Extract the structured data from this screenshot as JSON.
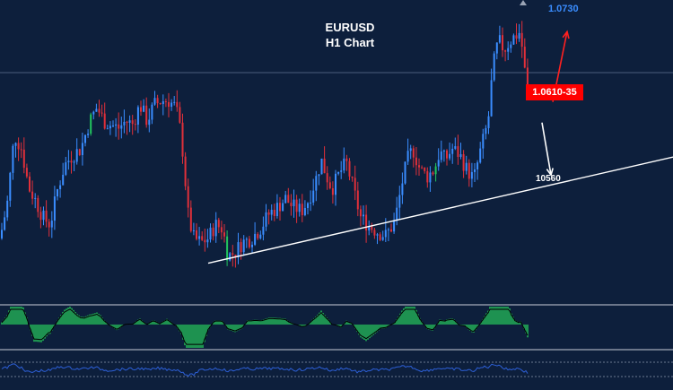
{
  "chart_data": {
    "type": "candlestick",
    "symbol": "EURUSD",
    "timeframe": "H1 Chart",
    "current_price_label": "1.0610-35",
    "target_up_label": "1.0730",
    "target_down_label": "10560",
    "colors": {
      "background": "#0d1f3c",
      "bull": "#3a8dff",
      "bear": "#e0303a",
      "doji": "#22c55e",
      "trendline": "#ffffff",
      "arrow_up": "#ff2020",
      "arrow_down": "#ffffff",
      "badge": "#ff0000",
      "osc_positive": "#27c45a",
      "osc_line": "#000000",
      "rsi_line": "#2d5fd6",
      "separator": "#c9ced8"
    },
    "price_path": [
      [
        0,
        1.0575
      ],
      [
        8,
        1.06
      ],
      [
        16,
        1.065
      ],
      [
        24,
        1.064
      ],
      [
        32,
        1.0612
      ],
      [
        40,
        1.0602
      ],
      [
        48,
        1.059
      ],
      [
        56,
        1.0585
      ],
      [
        64,
        1.061
      ],
      [
        72,
        1.0628
      ],
      [
        80,
        1.0635
      ],
      [
        90,
        1.064
      ],
      [
        100,
        1.066
      ],
      [
        108,
        1.067
      ],
      [
        116,
        1.066
      ],
      [
        124,
        1.0657
      ],
      [
        132,
        1.0655
      ],
      [
        140,
        1.066
      ],
      [
        148,
        1.0658
      ],
      [
        156,
        1.0672
      ],
      [
        164,
        1.066
      ],
      [
        172,
        1.0672
      ],
      [
        180,
        1.0675
      ],
      [
        188,
        1.0675
      ],
      [
        196,
        1.067
      ],
      [
        202,
        1.065
      ],
      [
        206,
        1.062
      ],
      [
        210,
        1.059
      ],
      [
        216,
        1.0575
      ],
      [
        224,
        1.0572
      ],
      [
        232,
        1.0575
      ],
      [
        240,
        1.0585
      ],
      [
        248,
        1.0582
      ],
      [
        254,
        1.0562
      ],
      [
        262,
        1.0565
      ],
      [
        270,
        1.0572
      ],
      [
        280,
        1.0575
      ],
      [
        290,
        1.0582
      ],
      [
        300,
        1.0593
      ],
      [
        310,
        1.0598
      ],
      [
        318,
        1.0604
      ],
      [
        326,
        1.0598
      ],
      [
        336,
        1.0595
      ],
      [
        344,
        1.0603
      ],
      [
        352,
        1.0618
      ],
      [
        358,
        1.0632
      ],
      [
        364,
        1.062
      ],
      [
        370,
        1.0611
      ],
      [
        378,
        1.0622
      ],
      [
        386,
        1.063
      ],
      [
        394,
        1.061
      ],
      [
        402,
        1.059
      ],
      [
        410,
        1.0585
      ],
      [
        420,
        1.058
      ],
      [
        430,
        1.0577
      ],
      [
        440,
        1.0587
      ],
      [
        448,
        1.0615
      ],
      [
        454,
        1.0632
      ],
      [
        460,
        1.064
      ],
      [
        468,
        1.0625
      ],
      [
        476,
        1.062
      ],
      [
        484,
        1.0625
      ],
      [
        490,
        1.0638
      ],
      [
        496,
        1.0632
      ],
      [
        504,
        1.064
      ],
      [
        512,
        1.0636
      ],
      [
        520,
        1.0625
      ],
      [
        528,
        1.0618
      ],
      [
        536,
        1.064
      ],
      [
        544,
        1.066
      ],
      [
        548,
        1.069
      ],
      [
        552,
        1.071
      ],
      [
        556,
        1.0718
      ],
      [
        562,
        1.0712
      ],
      [
        568,
        1.0718
      ],
      [
        574,
        1.0722
      ],
      [
        580,
        1.0725
      ],
      [
        584,
        1.07
      ],
      [
        588,
        1.0682
      ]
    ],
    "trendline": {
      "from": [
        232,
        1.0557
      ],
      "to": [
        750,
        1.0634
      ]
    },
    "arrow_up": {
      "from": [
        616,
        1.0674
      ],
      "to": [
        632,
        1.0725
      ]
    },
    "arrow_down": {
      "from": [
        604,
        1.0659
      ],
      "to": [
        614,
        1.0621
      ]
    },
    "ylim": [
      1.053,
      1.0748
    ]
  }
}
